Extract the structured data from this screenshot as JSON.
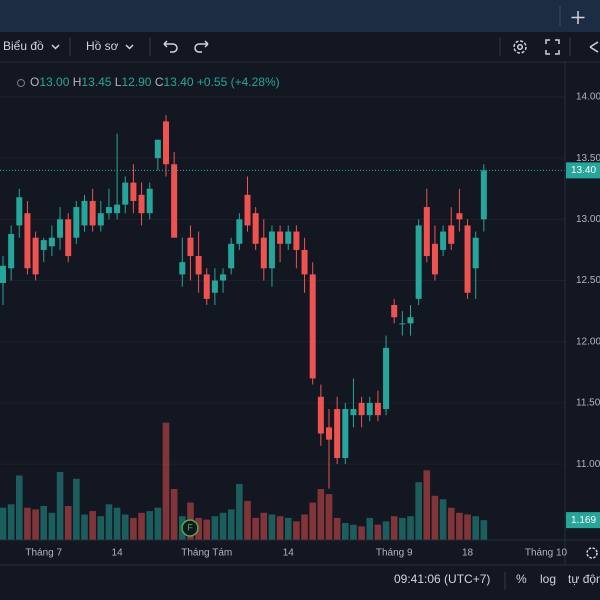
{
  "toolbar": {
    "chart_menu": "Biểu đồ",
    "profile_menu": "Hồ sơ"
  },
  "legend": {
    "open_key": "O",
    "open": "13.00",
    "high_key": "H",
    "high": "13.45",
    "low_key": "L",
    "low": "12.90",
    "close_key": "C",
    "close": "13.40",
    "change": "+0.55",
    "change_pct": "(+4.28%)"
  },
  "footer": {
    "clock": "09:41:06 (UTC+7)",
    "percent": "%",
    "log": "log",
    "auto": "tự động"
  },
  "chart_data": {
    "type": "candlestick",
    "up_color": "#26a69a",
    "down_color": "#ef5350",
    "grid": true,
    "categories": [
      null,
      null,
      null,
      null,
      null,
      "Tháng 7",
      null,
      null,
      null,
      null,
      null,
      null,
      null,
      null,
      "14",
      null,
      null,
      null,
      null,
      null,
      null,
      null,
      null,
      null,
      null,
      "Tháng Tám",
      null,
      null,
      null,
      null,
      null,
      null,
      null,
      null,
      null,
      "14",
      null,
      null,
      null,
      null,
      null,
      null,
      null,
      null,
      null,
      null,
      null,
      null,
      "Tháng 9",
      null,
      null,
      null,
      null,
      null,
      null,
      null,
      null,
      "18",
      null,
      null
    ],
    "future_category": "Tháng 10",
    "open": [
      12.48,
      12.6,
      12.95,
      13.05,
      12.85,
      12.75,
      12.78,
      12.85,
      13.0,
      12.85,
      12.95,
      13.15,
      12.95,
      13.05,
      13.05,
      13.12,
      13.3,
      13.2,
      13.05,
      13.5,
      13.8,
      13.45,
      12.55,
      12.85,
      12.7,
      12.55,
      12.4,
      12.5,
      12.6,
      12.8,
      13.2,
      13.05,
      12.85,
      12.6,
      12.9,
      12.8,
      12.9,
      12.75,
      12.55,
      11.55,
      11.3,
      11.45,
      11.05,
      11.4,
      11.5,
      11.4,
      11.5,
      11.45,
      12.3,
      12.15,
      12.15,
      12.35,
      13.1,
      12.8,
      12.75,
      12.95,
      13.05,
      12.95,
      12.6,
      13.0
    ],
    "high": [
      12.7,
      12.95,
      13.25,
      13.15,
      12.9,
      12.85,
      12.95,
      13.1,
      13.05,
      13.15,
      13.2,
      13.25,
      13.15,
      13.25,
      13.7,
      13.35,
      13.45,
      13.3,
      13.3,
      13.65,
      13.85,
      13.55,
      12.85,
      12.95,
      12.9,
      12.6,
      12.6,
      12.6,
      12.85,
      13.05,
      13.35,
      13.1,
      13.0,
      12.95,
      12.95,
      12.95,
      12.95,
      12.85,
      12.65,
      11.65,
      11.45,
      11.55,
      11.5,
      11.7,
      11.55,
      11.55,
      11.6,
      12.05,
      12.35,
      12.25,
      12.3,
      13.0,
      13.25,
      12.95,
      12.95,
      13.1,
      13.25,
      13.0,
      12.9,
      13.45
    ],
    "low": [
      12.3,
      12.5,
      12.85,
      12.55,
      12.5,
      12.65,
      12.7,
      12.75,
      12.65,
      12.8,
      12.9,
      12.9,
      12.9,
      13.0,
      13.0,
      13.05,
      13.05,
      12.95,
      13.0,
      13.4,
      13.35,
      12.85,
      12.45,
      12.5,
      12.4,
      12.3,
      12.3,
      12.4,
      12.55,
      12.75,
      12.9,
      12.75,
      12.5,
      12.45,
      12.65,
      12.75,
      12.6,
      12.4,
      11.65,
      11.15,
      10.8,
      11.0,
      11.0,
      11.3,
      11.3,
      11.35,
      11.35,
      11.4,
      12.15,
      12.05,
      12.05,
      12.3,
      12.65,
      12.5,
      12.7,
      12.75,
      12.9,
      12.35,
      12.35,
      12.9
    ],
    "close": [
      12.62,
      12.88,
      13.18,
      12.6,
      12.55,
      12.83,
      12.85,
      13.0,
      12.7,
      13.1,
      13.15,
      12.95,
      13.05,
      13.1,
      13.12,
      13.3,
      13.15,
      13.05,
      13.25,
      13.65,
      13.45,
      12.85,
      12.65,
      12.7,
      12.55,
      12.35,
      12.5,
      12.55,
      12.8,
      13.0,
      12.95,
      12.8,
      12.6,
      12.9,
      12.8,
      12.9,
      12.75,
      12.55,
      11.7,
      11.25,
      11.2,
      11.05,
      11.45,
      11.45,
      11.4,
      11.5,
      11.4,
      11.95,
      12.2,
      12.15,
      12.2,
      12.95,
      12.7,
      12.55,
      12.9,
      12.8,
      13.0,
      12.4,
      12.85,
      13.4
    ],
    "volume": [
      1.9,
      2.1,
      3.8,
      1.9,
      1.8,
      2.0,
      1.6,
      4.0,
      2.0,
      3.6,
      1.5,
      1.7,
      1.4,
      2.1,
      1.9,
      1.5,
      1.3,
      1.6,
      1.7,
      1.9,
      6.9,
      3.0,
      1.4,
      2.2,
      1.3,
      1.2,
      1.4,
      1.6,
      1.8,
      3.3,
      2.3,
      1.3,
      1.6,
      1.5,
      1.4,
      1.3,
      1.1,
      1.5,
      2.2,
      3.0,
      2.7,
      1.3,
      1.0,
      0.9,
      0.8,
      1.3,
      0.9,
      1.1,
      1.4,
      1.3,
      1.4,
      3.4,
      4.1,
      2.6,
      2.4,
      1.9,
      1.6,
      1.5,
      1.4,
      1.169
    ],
    "ylim": [
      10.38,
      14.22
    ],
    "yticks": [
      {
        "value": 11,
        "label": "11.00"
      },
      {
        "value": 11.5,
        "label": "11.50"
      },
      {
        "value": 12,
        "label": "12.00"
      },
      {
        "value": 12.5,
        "label": "12.50"
      },
      {
        "value": 13,
        "label": "13.00"
      },
      {
        "value": 13.5,
        "label": "13.50"
      },
      {
        "value": 14,
        "label": "14.00"
      }
    ],
    "price_tag": {
      "value": 13.4,
      "label": "13.40"
    },
    "volume_tag": {
      "value": 1.169,
      "label": "1.169"
    },
    "event_marker": "F"
  }
}
